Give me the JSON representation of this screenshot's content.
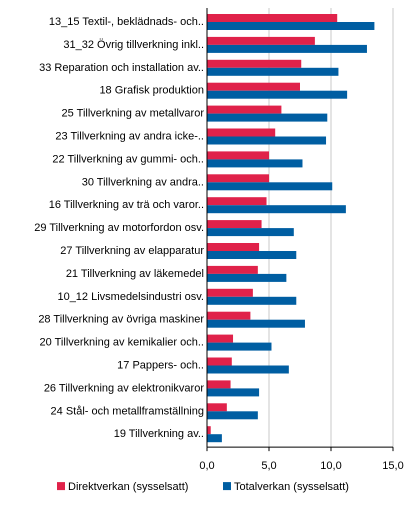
{
  "chart_data": {
    "type": "bar",
    "orientation": "horizontal",
    "categories": [
      "13_15 Textil-, beklädnads- och..",
      "31_32 Övrig tillverkning inkl..",
      "33 Reparation och installation av..",
      "18 Grafisk produktion",
      "25 Tillverkning av metallvaror",
      "23 Tillverkning av andra icke-..",
      "22 Tillverkning av gummi- och..",
      "30 Tillverkning av andra..",
      "16 Tillverkning av trä och varor..",
      "29 Tillverkning av motorfordon osv.",
      "27 Tillverkning av elapparatur",
      "21 Tillverkning av läkemedel",
      "10_12 Livsmedelsindustri osv.",
      "28 Tillverkning av övriga maskiner",
      "20 Tillverkning av kemikalier och..",
      "17 Pappers- och..",
      "26 Tillverkning av elektronikvaror",
      "24 Stål- och metallframställning",
      "19 Tillverkning av.."
    ],
    "series": [
      {
        "name": "Direktverkan (sysselsatt)",
        "color": "#e0224a",
        "values": [
          10.5,
          8.7,
          7.6,
          7.5,
          6.0,
          5.5,
          5.0,
          5.0,
          4.8,
          4.4,
          4.2,
          4.1,
          3.7,
          3.5,
          2.1,
          2.0,
          1.9,
          1.6,
          0.3
        ]
      },
      {
        "name": "Totalverkan (sysselsatt)",
        "color": "#005ea2",
        "values": [
          13.5,
          12.9,
          10.6,
          11.3,
          9.7,
          9.6,
          7.7,
          10.1,
          11.2,
          7.0,
          7.2,
          6.4,
          7.2,
          7.9,
          5.2,
          6.6,
          4.2,
          4.1,
          1.2
        ]
      }
    ],
    "xlim": [
      0,
      15
    ],
    "xticks": [
      "0,0",
      "5,0",
      "10,0",
      "15,0"
    ],
    "xtick_values": [
      0,
      5,
      10,
      15
    ],
    "grid": "vertical",
    "legend": "bottom"
  }
}
